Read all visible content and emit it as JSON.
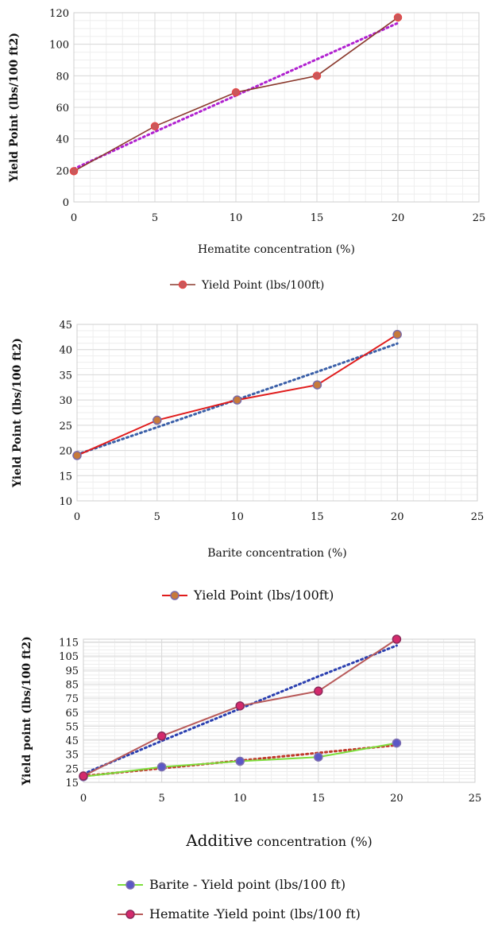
{
  "chart_data": [
    {
      "type": "line",
      "x": [
        0,
        5,
        10,
        15,
        20
      ],
      "xlim": [
        0,
        25
      ],
      "ylim": [
        0,
        120
      ],
      "xticks": [
        "0",
        "5",
        "10",
        "15",
        "20",
        "25"
      ],
      "yticks": [
        "0",
        "20",
        "40",
        "60",
        "80",
        "100",
        "120"
      ],
      "xlabel": "Hematite concentration (%)",
      "ylabel": "Yield Point (lbs/100  ft2)",
      "grid": true,
      "legend_position": "bottom",
      "series": [
        {
          "name": "Yield Point (lbs/100ft)",
          "values": [
            19.5,
            48,
            69.5,
            80,
            117
          ],
          "color": "#8b3a2e",
          "marker_fill": "#c9585a",
          "marker_edge": "#e24a4a",
          "trendline": {
            "color": "#b020d0",
            "values": [
              21,
              44.5,
              67.5,
              90.5,
              113.5
            ]
          }
        }
      ]
    },
    {
      "type": "line",
      "x": [
        0,
        5,
        10,
        15,
        20
      ],
      "xlim": [
        0,
        25
      ],
      "ylim": [
        10,
        45
      ],
      "xticks": [
        "0",
        "5",
        "10",
        "15",
        "20",
        "25"
      ],
      "yticks": [
        "10",
        "15",
        "20",
        "25",
        "30",
        "35",
        "40",
        "45"
      ],
      "xlabel": "Barite concentration (%)",
      "ylabel": "Yield Point (lbs/100  ft2)",
      "grid": true,
      "legend_position": "bottom",
      "series": [
        {
          "name": "Yield Point (lbs/100ft)",
          "values": [
            19,
            26,
            30,
            33,
            43
          ],
          "color": "#e01c1c",
          "marker_fill": "#c77a3a",
          "marker_edge": "#7a6aa8",
          "trendline": {
            "color": "#3a5fa8",
            "values": [
              19.2,
              24.6,
              30.1,
              35.6,
              41.2
            ]
          }
        }
      ]
    },
    {
      "type": "line",
      "x": [
        0,
        5,
        10,
        15,
        20
      ],
      "xlim": [
        0,
        25
      ],
      "ylim": [
        15,
        117
      ],
      "xticks": [
        "0",
        "5",
        "10",
        "15",
        "20",
        "25"
      ],
      "yticks": [
        "15",
        "25",
        "35",
        "45",
        "55",
        "65",
        "75",
        "85",
        "95",
        "105",
        "115"
      ],
      "xlabel_main": "Additive",
      "xlabel_rest": " concentration (%)",
      "ylabel": "Yield point (lbs/100  ft2)",
      "grid": true,
      "legend_position": "bottom",
      "series": [
        {
          "name": "Barite - Yield point (lbs/100  ft)",
          "values": [
            19,
            26,
            30,
            33,
            43
          ],
          "color": "#7dde3c",
          "marker_fill": "#5b58c6",
          "marker_edge": "#7d6fb0",
          "trendline": {
            "color": "#c0392b",
            "values": [
              19.5,
              25,
              30.5,
              36,
              41.5
            ]
          }
        },
        {
          "name": "Hematite -Yield point (lbs/100  ft)",
          "values": [
            19.5,
            48,
            69.5,
            80,
            117
          ],
          "color": "#b85a5a",
          "marker_fill": "#d42a6c",
          "marker_edge": "#8a2a5a",
          "trendline": {
            "color": "#2a3fb0",
            "values": [
              21,
              44.5,
              67.5,
              90.5,
              112.5
            ]
          }
        }
      ]
    }
  ]
}
